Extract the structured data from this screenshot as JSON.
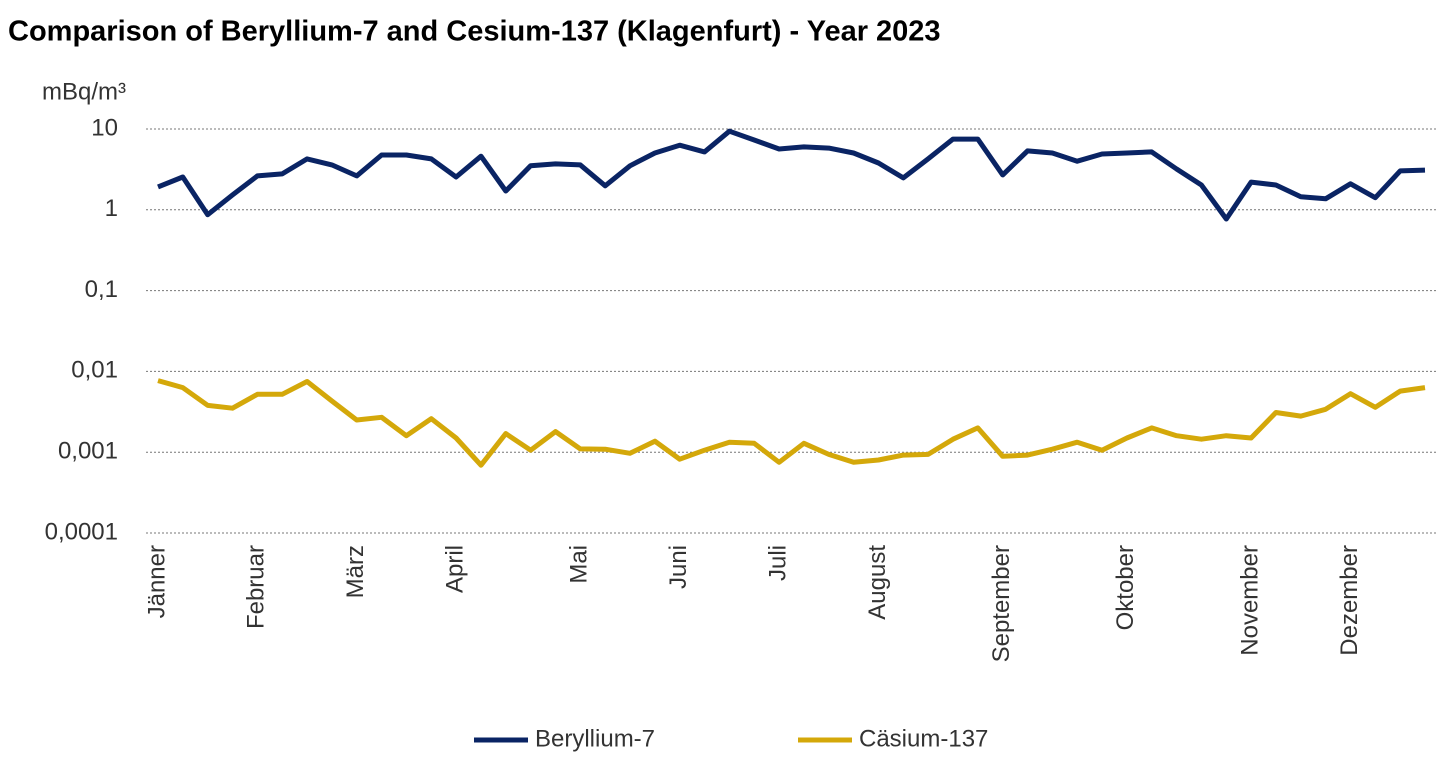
{
  "chart_data": {
    "type": "line",
    "title": "Comparison of Beryllium-7 and Cesium-137 (Klagenfurt) - Year 2023",
    "y_label": "mBq/m³",
    "log_scale": true,
    "grid": true,
    "legend": "bottom",
    "ylim": [
      0.0001,
      10
    ],
    "yticks": [
      {
        "value": 0.0001,
        "label": "0,0001"
      },
      {
        "value": 0.001,
        "label": "0,001"
      },
      {
        "value": 0.01,
        "label": "0,01"
      },
      {
        "value": 0.1,
        "label": "0,1"
      },
      1,
      10
    ],
    "categories": [
      "Jänner",
      null,
      null,
      null,
      "Februar",
      null,
      null,
      null,
      "März",
      null,
      null,
      null,
      "April",
      null,
      null,
      null,
      null,
      "Mai",
      null,
      null,
      null,
      "Juni",
      null,
      null,
      null,
      "Juli",
      null,
      null,
      null,
      "August",
      null,
      null,
      null,
      null,
      "September",
      null,
      null,
      null,
      null,
      "Oktober",
      null,
      null,
      null,
      null,
      "November",
      null,
      null,
      null,
      "Dezember",
      null,
      null,
      null
    ],
    "series": [
      {
        "name": "Beryllium-7",
        "color": "#0a2464",
        "values": [
          1.92,
          2.55,
          0.87,
          1.53,
          2.63,
          2.78,
          4.27,
          3.6,
          2.63,
          4.77,
          4.77,
          4.27,
          2.55,
          4.6,
          1.71,
          3.5,
          3.7,
          3.6,
          1.98,
          3.5,
          5.05,
          6.3,
          5.2,
          9.4,
          7.3,
          5.66,
          6.0,
          5.8,
          5.05,
          3.8,
          2.48,
          4.27,
          7.5,
          7.5,
          2.7,
          5.35,
          5.05,
          4.0,
          4.9,
          5.05,
          5.2,
          3.2,
          2.03,
          0.77,
          2.2,
          2.03,
          1.45,
          1.37,
          2.1,
          1.41,
          3.03,
          3.1
        ]
      },
      {
        "name": "Cäsium-137",
        "color": "#d4a80a",
        "values": [
          0.0077,
          0.0063,
          0.0038,
          0.0035,
          0.0052,
          0.0052,
          0.0075,
          0.0043,
          0.0025,
          0.0027,
          0.0016,
          0.0026,
          0.0015,
          0.00069,
          0.0017,
          0.00106,
          0.0018,
          0.0011,
          0.00109,
          0.00097,
          0.00137,
          0.00082,
          0.00106,
          0.00133,
          0.00129,
          0.00075,
          0.00129,
          0.00094,
          0.00075,
          0.0008,
          0.00092,
          0.00094,
          0.00145,
          0.002,
          0.00089,
          0.00092,
          0.00109,
          0.00133,
          0.00106,
          0.0015,
          0.002,
          0.0016,
          0.00145,
          0.0016,
          0.0015,
          0.0031,
          0.0028,
          0.0034,
          0.0053,
          0.0036,
          0.0057,
          0.0063
        ]
      }
    ]
  }
}
